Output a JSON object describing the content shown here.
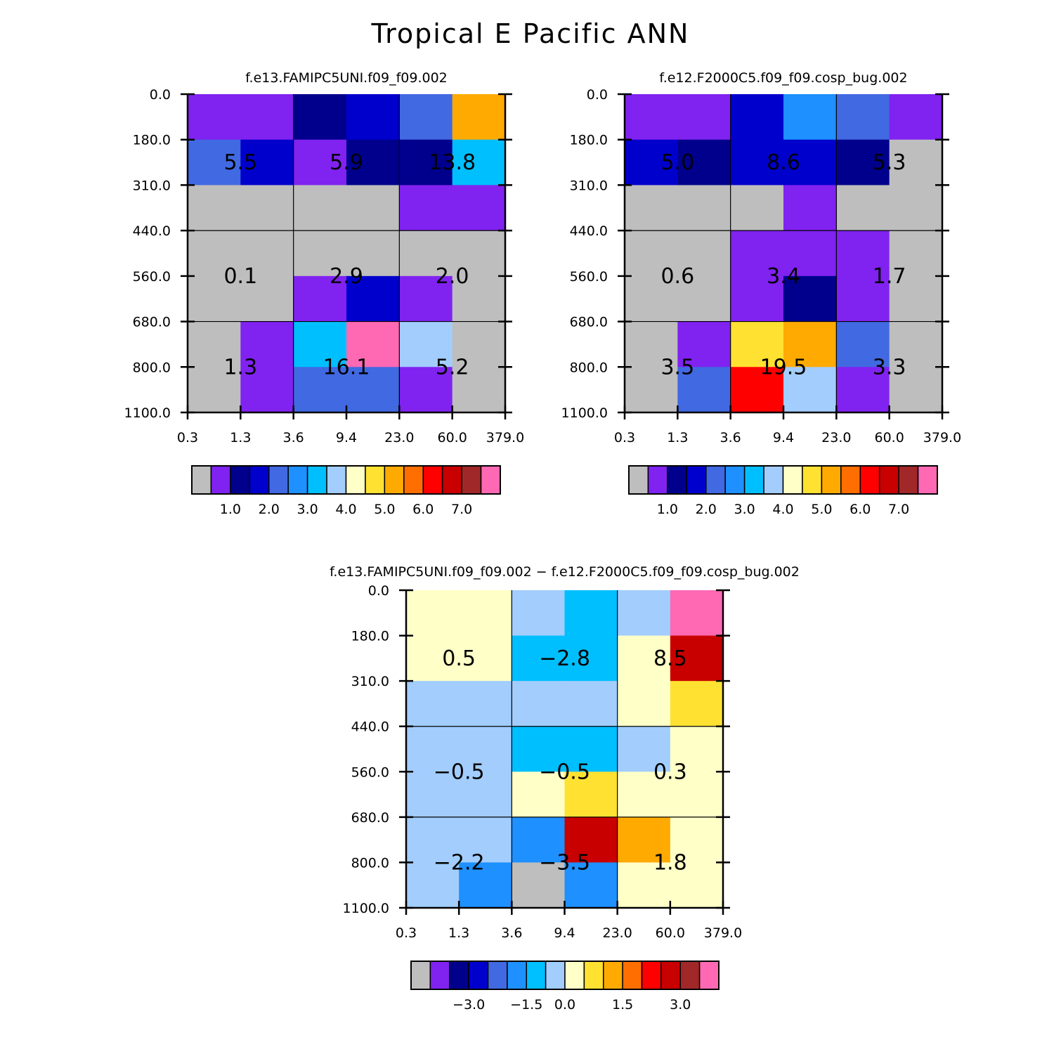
{
  "title": "Tropical E Pacific ANN",
  "palette": {
    "gray": "#bebebe",
    "purple": "#8022f0",
    "navy": "#00008c",
    "blue": "#0000cd",
    "royal": "#4169e1",
    "dodger": "#1e90ff",
    "sky": "#00bfff",
    "lightblue": "#a2cdfd",
    "cream": "#ffffc8",
    "gold": "#ffe132",
    "orange": "#ffaa00",
    "darkorange": "#ff6e00",
    "red": "#ff0000",
    "crimson": "#c80000",
    "brown": "#a02828",
    "pink": "#ff69b4"
  },
  "chart_data": [
    {
      "id": "panel-1",
      "type": "heatmap",
      "title": "f.e13.FAMIPC5UNI.f09_f09.002",
      "x_ticks": [
        "0.3",
        "1.3",
        "3.6",
        "9.4",
        "23.0",
        "60.0",
        "379.0"
      ],
      "y_ticks": [
        "0.0",
        "180.0",
        "310.0",
        "440.0",
        "560.0",
        "680.0",
        "800.0",
        "1100.0"
      ],
      "xlabel": "",
      "ylabel": "",
      "cell_colors": [
        [
          "purple",
          "purple",
          "navy",
          "blue",
          "royal",
          "orange"
        ],
        [
          "royal",
          "blue",
          "purple",
          "navy",
          "navy",
          "sky"
        ],
        [
          "gray",
          "gray",
          "gray",
          "gray",
          "purple",
          "purple"
        ],
        [
          "gray",
          "gray",
          "gray",
          "gray",
          "gray",
          "gray"
        ],
        [
          "gray",
          "gray",
          "purple",
          "blue",
          "purple",
          "gray"
        ],
        [
          "gray",
          "purple",
          "sky",
          "pink",
          "lightblue",
          "gray"
        ],
        [
          "gray",
          "purple",
          "royal",
          "royal",
          "purple",
          "gray"
        ]
      ],
      "box_values": [
        [
          "5.5",
          "5.9",
          "13.8"
        ],
        [
          "0.1",
          "2.9",
          "2.0"
        ],
        [
          "1.3",
          "16.1",
          "5.2"
        ]
      ],
      "colorbar": {
        "colors": [
          "gray",
          "purple",
          "navy",
          "blue",
          "royal",
          "dodger",
          "sky",
          "lightblue",
          "cream",
          "gold",
          "orange",
          "darkorange",
          "red",
          "crimson",
          "brown",
          "pink"
        ],
        "labels": [
          "1.0",
          "2.0",
          "3.0",
          "4.0",
          "5.0",
          "6.0",
          "7.0"
        ]
      }
    },
    {
      "id": "panel-2",
      "type": "heatmap",
      "title": "f.e12.F2000C5.f09_f09.cosp_bug.002",
      "x_ticks": [
        "0.3",
        "1.3",
        "3.6",
        "9.4",
        "23.0",
        "60.0",
        "379.0"
      ],
      "y_ticks": [
        "0.0",
        "180.0",
        "310.0",
        "440.0",
        "560.0",
        "680.0",
        "800.0",
        "1100.0"
      ],
      "xlabel": "",
      "ylabel": "",
      "cell_colors": [
        [
          "purple",
          "purple",
          "blue",
          "dodger",
          "royal",
          "purple"
        ],
        [
          "blue",
          "navy",
          "blue",
          "blue",
          "navy",
          "gray"
        ],
        [
          "gray",
          "gray",
          "gray",
          "purple",
          "gray",
          "gray"
        ],
        [
          "gray",
          "gray",
          "purple",
          "purple",
          "purple",
          "gray"
        ],
        [
          "gray",
          "gray",
          "purple",
          "navy",
          "purple",
          "gray"
        ],
        [
          "gray",
          "purple",
          "gold",
          "orange",
          "royal",
          "gray"
        ],
        [
          "gray",
          "royal",
          "red",
          "lightblue",
          "purple",
          "gray"
        ]
      ],
      "box_values": [
        [
          "5.0",
          "8.6",
          "5.3"
        ],
        [
          "0.6",
          "3.4",
          "1.7"
        ],
        [
          "3.5",
          "19.5",
          "3.3"
        ]
      ],
      "colorbar": {
        "colors": [
          "gray",
          "purple",
          "navy",
          "blue",
          "royal",
          "dodger",
          "sky",
          "lightblue",
          "cream",
          "gold",
          "orange",
          "darkorange",
          "red",
          "crimson",
          "brown",
          "pink"
        ],
        "labels": [
          "1.0",
          "2.0",
          "3.0",
          "4.0",
          "5.0",
          "6.0",
          "7.0"
        ]
      }
    },
    {
      "id": "panel-3",
      "type": "heatmap",
      "title": "f.e13.FAMIPC5UNI.f09_f09.002 − f.e12.F2000C5.f09_f09.cosp_bug.002",
      "x_ticks": [
        "0.3",
        "1.3",
        "3.6",
        "9.4",
        "23.0",
        "60.0",
        "379.0"
      ],
      "y_ticks": [
        "0.0",
        "180.0",
        "310.0",
        "440.0",
        "560.0",
        "680.0",
        "800.0",
        "1100.0"
      ],
      "xlabel": "",
      "ylabel": "",
      "cell_colors": [
        [
          "cream",
          "cream",
          "lightblue",
          "sky",
          "lightblue",
          "pink"
        ],
        [
          "cream",
          "cream",
          "sky",
          "sky",
          "cream",
          "crimson"
        ],
        [
          "lightblue",
          "lightblue",
          "lightblue",
          "lightblue",
          "cream",
          "gold"
        ],
        [
          "lightblue",
          "lightblue",
          "sky",
          "sky",
          "lightblue",
          "cream"
        ],
        [
          "lightblue",
          "lightblue",
          "cream",
          "gold",
          "cream",
          "cream"
        ],
        [
          "lightblue",
          "lightblue",
          "dodger",
          "crimson",
          "orange",
          "cream"
        ],
        [
          "lightblue",
          "dodger",
          "gray",
          "dodger",
          "cream",
          "cream"
        ]
      ],
      "box_values": [
        [
          "0.5",
          "−2.8",
          "8.5"
        ],
        [
          "−0.5",
          "−0.5",
          "0.3"
        ],
        [
          "−2.2",
          "−3.5",
          "1.8"
        ]
      ],
      "colorbar": {
        "colors": [
          "gray",
          "purple",
          "navy",
          "blue",
          "royal",
          "dodger",
          "sky",
          "lightblue",
          "cream",
          "gold",
          "orange",
          "darkorange",
          "red",
          "crimson",
          "brown",
          "pink"
        ],
        "labels": [
          "−3.0",
          "−1.5",
          "0.0",
          "1.5",
          "3.0"
        ]
      }
    }
  ]
}
